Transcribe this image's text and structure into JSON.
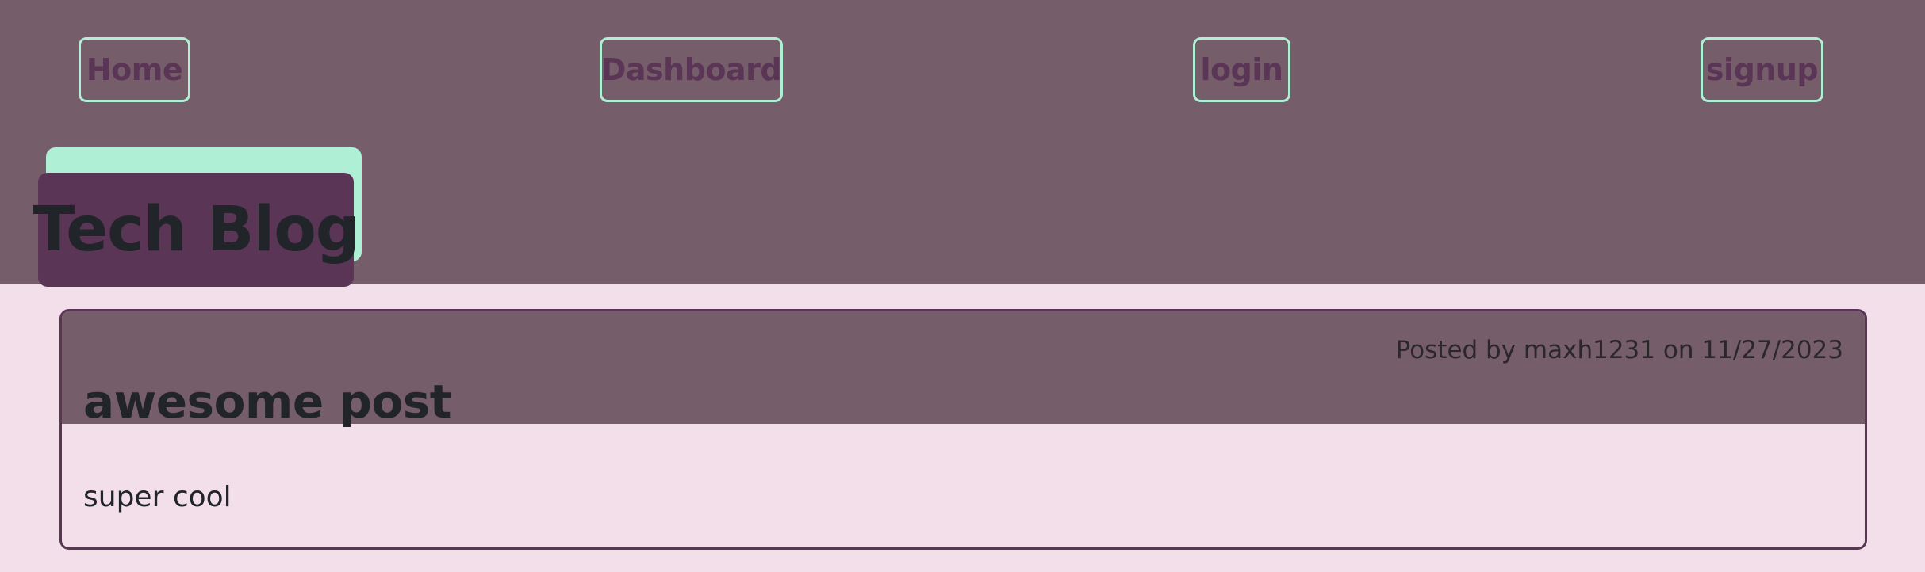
{
  "nav": {
    "home": "Home",
    "dashboard": "Dashboard",
    "login": "login",
    "signup": "signup"
  },
  "brand": {
    "title": "Tech Blog"
  },
  "post": {
    "title": "awesome post",
    "meta": "Posted by maxh1231 on 11/27/2023",
    "body": "super cool"
  },
  "colors": {
    "header_bg": "#765d6a",
    "page_bg": "#f2dfe9",
    "accent": "#aeefd5",
    "brand_bg": "#5a3556",
    "text": "#212529"
  }
}
